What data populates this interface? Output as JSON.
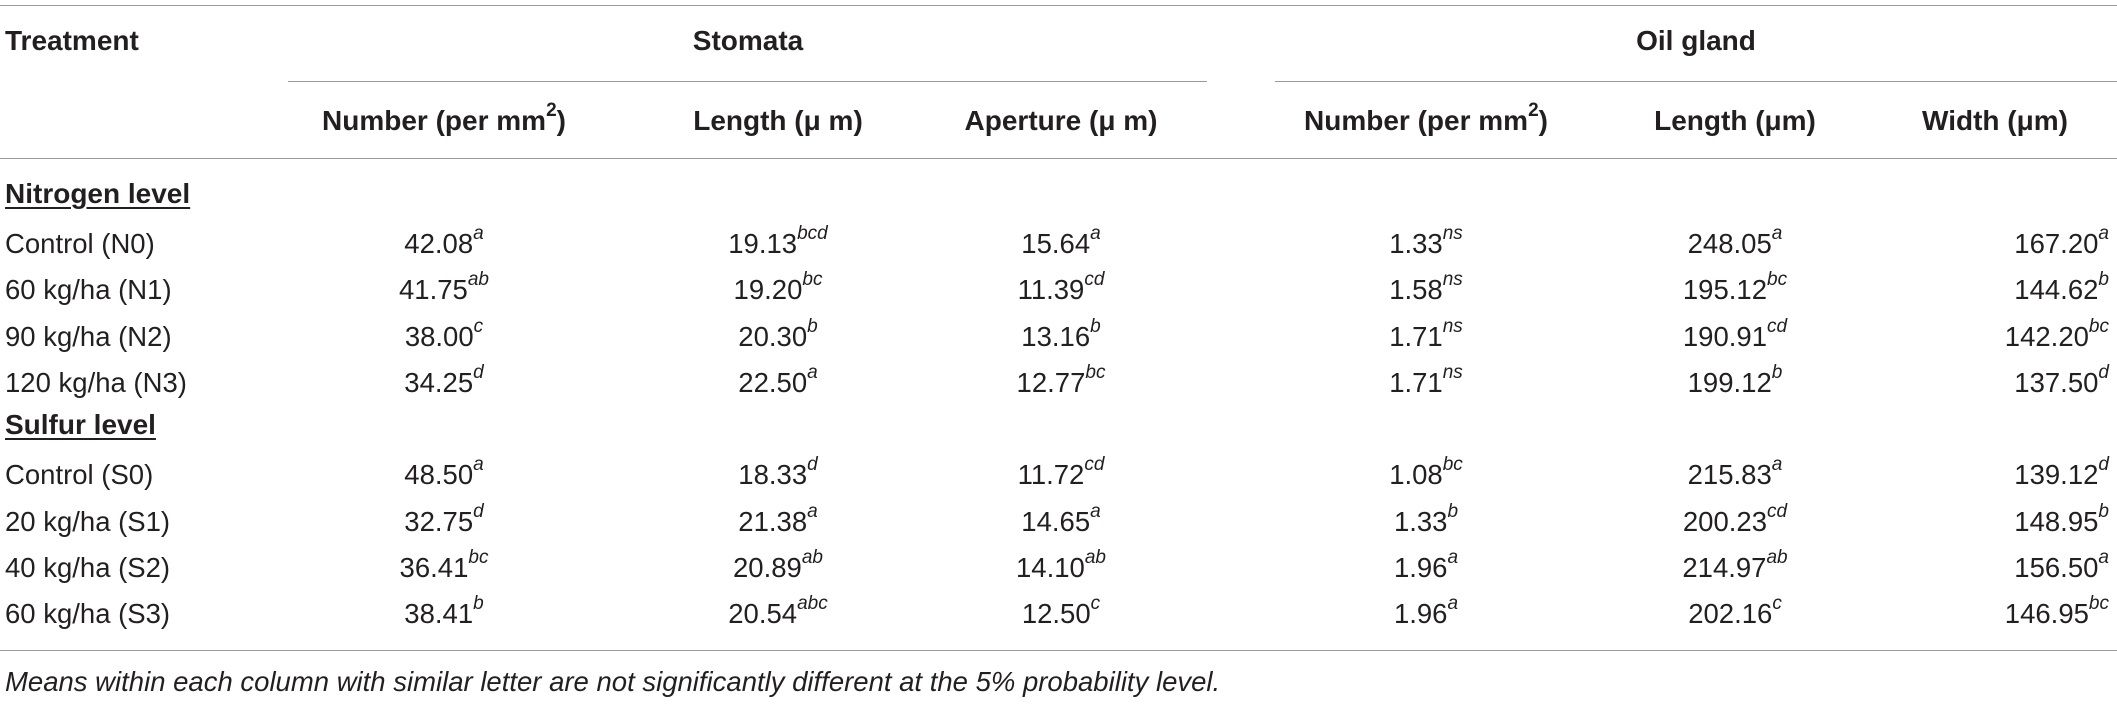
{
  "header": {
    "treatment": "Treatment",
    "group_stomata": "Stomata",
    "group_oil_gland": "Oil gland",
    "columns": [
      {
        "text": "Number (per mm",
        "sup": "2",
        "tail": ")"
      },
      {
        "text": "Length (μ m)",
        "sup": "",
        "tail": ""
      },
      {
        "text": "Aperture (μ m)",
        "sup": "",
        "tail": ""
      },
      {
        "text": "Number (per mm",
        "sup": "2",
        "tail": ")"
      },
      {
        "text": "Length (μm)",
        "sup": "",
        "tail": ""
      },
      {
        "text": "Width (μm)",
        "sup": "",
        "tail": ""
      }
    ]
  },
  "sections": [
    {
      "title": "Nitrogen level",
      "rows": [
        {
          "label": "Control (N0)",
          "cells": [
            {
              "v": "42.08",
              "s": "a"
            },
            {
              "v": "19.13",
              "s": "bcd"
            },
            {
              "v": "15.64",
              "s": "a"
            },
            {
              "v": "1.33",
              "s": "ns"
            },
            {
              "v": "248.05",
              "s": "a"
            },
            {
              "v": "167.20",
              "s": "a"
            }
          ]
        },
        {
          "label": "60 kg/ha (N1)",
          "cells": [
            {
              "v": "41.75",
              "s": "ab"
            },
            {
              "v": "19.20",
              "s": "bc"
            },
            {
              "v": "11.39",
              "s": "cd"
            },
            {
              "v": "1.58",
              "s": "ns"
            },
            {
              "v": "195.12",
              "s": "bc"
            },
            {
              "v": "144.62",
              "s": "b"
            }
          ]
        },
        {
          "label": "90 kg/ha (N2)",
          "cells": [
            {
              "v": "38.00",
              "s": "c"
            },
            {
              "v": "20.30",
              "s": "b"
            },
            {
              "v": "13.16",
              "s": "b"
            },
            {
              "v": "1.71",
              "s": "ns"
            },
            {
              "v": "190.91",
              "s": "cd"
            },
            {
              "v": "142.20",
              "s": "bc"
            }
          ]
        },
        {
          "label": "120 kg/ha (N3)",
          "cells": [
            {
              "v": "34.25",
              "s": "d"
            },
            {
              "v": "22.50",
              "s": "a"
            },
            {
              "v": "12.77",
              "s": "bc"
            },
            {
              "v": "1.71",
              "s": "ns"
            },
            {
              "v": "199.12",
              "s": "b"
            },
            {
              "v": "137.50",
              "s": "d"
            }
          ]
        }
      ]
    },
    {
      "title": "Sulfur level",
      "rows": [
        {
          "label": "Control (S0)",
          "cells": [
            {
              "v": "48.50",
              "s": "a"
            },
            {
              "v": "18.33",
              "s": "d"
            },
            {
              "v": "11.72",
              "s": "cd"
            },
            {
              "v": "1.08",
              "s": "bc"
            },
            {
              "v": "215.83",
              "s": "a"
            },
            {
              "v": "139.12",
              "s": "d"
            }
          ]
        },
        {
          "label": "20 kg/ha (S1)",
          "cells": [
            {
              "v": "32.75",
              "s": "d"
            },
            {
              "v": "21.38",
              "s": "a"
            },
            {
              "v": "14.65",
              "s": "a"
            },
            {
              "v": "1.33",
              "s": "b"
            },
            {
              "v": "200.23",
              "s": "cd"
            },
            {
              "v": "148.95",
              "s": "b"
            }
          ]
        },
        {
          "label": "40 kg/ha (S2)",
          "cells": [
            {
              "v": "36.41",
              "s": "bc"
            },
            {
              "v": "20.89",
              "s": "ab"
            },
            {
              "v": "14.10",
              "s": "ab"
            },
            {
              "v": "1.96",
              "s": "a"
            },
            {
              "v": "214.97",
              "s": "ab"
            },
            {
              "v": "156.50",
              "s": "a"
            }
          ]
        },
        {
          "label": "60 kg/ha (S3)",
          "cells": [
            {
              "v": "38.41",
              "s": "b"
            },
            {
              "v": "20.54",
              "s": "abc"
            },
            {
              "v": "12.50",
              "s": "c"
            },
            {
              "v": "1.96",
              "s": "a"
            },
            {
              "v": "202.16",
              "s": "c"
            },
            {
              "v": "146.95",
              "s": "bc"
            }
          ]
        }
      ]
    }
  ],
  "footnote": "Means within each column with similar letter are not significantly different at the 5% probability level."
}
